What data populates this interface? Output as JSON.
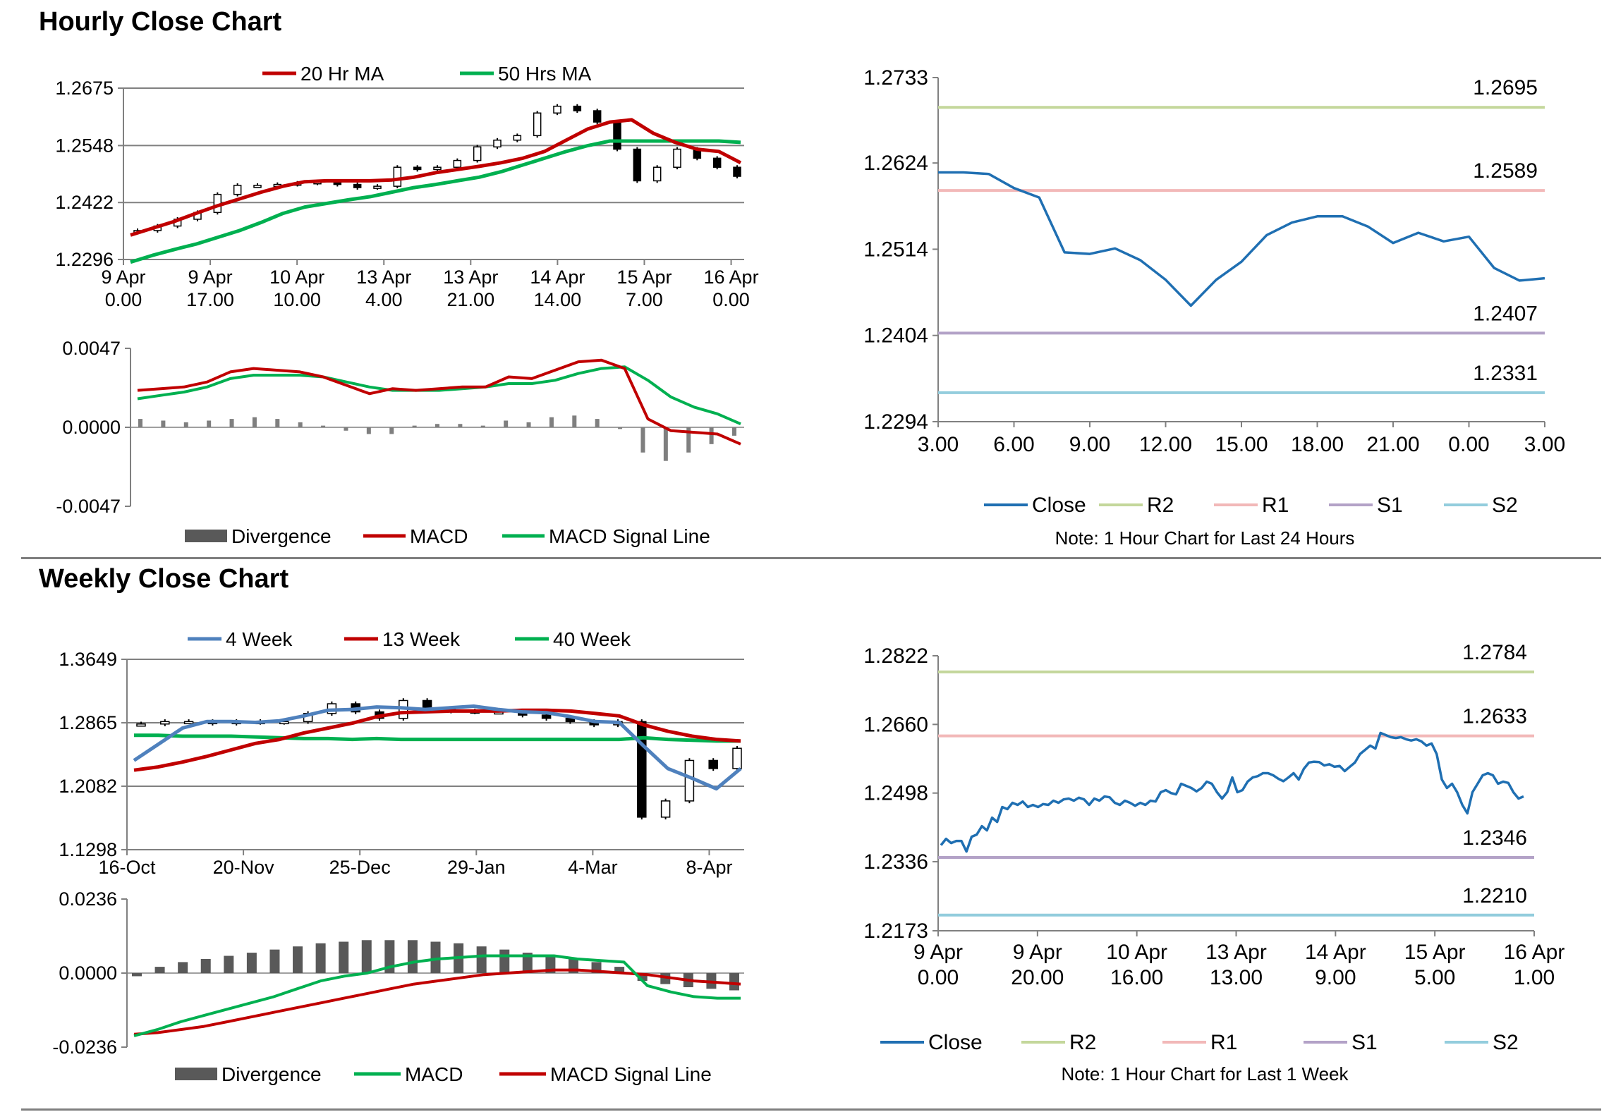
{
  "sections": {
    "hourly_title": "Hourly Close Chart",
    "weekly_title": "Weekly Close Chart"
  },
  "colors": {
    "red": "#c00000",
    "green": "#00b050",
    "blue_ma": "#4f81bd",
    "close": "#1f6fb2",
    "R2": "#c4d79b",
    "R1": "#f2b8b8",
    "S1": "#b3a2c7",
    "S2": "#93cddd",
    "bar": "#595959",
    "grid": "#808080"
  },
  "chart_data": [
    {
      "id": "hourly_price",
      "type": "candlestick",
      "legend": [
        "20 Hr MA",
        "50 Hrs MA"
      ],
      "y_ticks": [
        "1.2675",
        "1.2548",
        "1.2422",
        "1.2296"
      ],
      "ylim": [
        1.2296,
        1.2675
      ],
      "x_ticks": [
        [
          "9 Apr",
          "0.00"
        ],
        [
          "9 Apr",
          "17.00"
        ],
        [
          "10 Apr",
          "10.00"
        ],
        [
          "13 Apr",
          "4.00"
        ],
        [
          "13 Apr",
          "21.00"
        ],
        [
          "14 Apr",
          "14.00"
        ],
        [
          "15 Apr",
          "7.00"
        ],
        [
          "16 Apr",
          "0.00"
        ]
      ],
      "series": [
        {
          "name": "20 Hr MA",
          "values": [
            1.235,
            1.2365,
            1.238,
            1.2398,
            1.2415,
            1.243,
            1.2445,
            1.2458,
            1.2468,
            1.247,
            1.247,
            1.247,
            1.2472,
            1.2478,
            1.2488,
            1.2495,
            1.2502,
            1.251,
            1.252,
            1.2535,
            1.256,
            1.2585,
            1.26,
            1.2605,
            1.2575,
            1.2555,
            1.254,
            1.2535,
            1.251
          ]
        },
        {
          "name": "50 Hrs MA",
          "values": [
            1.229,
            1.2305,
            1.2318,
            1.233,
            1.2345,
            1.236,
            1.2378,
            1.2398,
            1.2412,
            1.242,
            1.2428,
            1.2435,
            1.2445,
            1.2455,
            1.2462,
            1.247,
            1.2478,
            1.249,
            1.2505,
            1.252,
            1.2535,
            1.2548,
            1.2558,
            1.2558,
            1.2558,
            1.2558,
            1.2558,
            1.2558,
            1.2555
          ]
        },
        {
          "name": "Close",
          "values": [
            1.236,
            1.237,
            1.2385,
            1.24,
            1.244,
            1.246,
            1.246,
            1.2462,
            1.2465,
            1.2468,
            1.2462,
            1.2455,
            1.2458,
            1.25,
            1.2495,
            1.25,
            1.2515,
            1.2545,
            1.256,
            1.257,
            1.262,
            1.2635,
            1.2625,
            1.26,
            1.254,
            1.247,
            1.25,
            1.254,
            1.252,
            1.25,
            1.248
          ]
        }
      ]
    },
    {
      "id": "hourly_macd",
      "type": "line+bar",
      "legend": [
        "Divergence",
        "MACD",
        "MACD Signal Line"
      ],
      "y_ticks": [
        "0.0047",
        "0.0000",
        "-0.0047"
      ],
      "ylim": [
        -0.0047,
        0.0047
      ],
      "series": [
        {
          "name": "MACD",
          "values": [
            0.0022,
            0.0023,
            0.0024,
            0.0027,
            0.0033,
            0.0035,
            0.0034,
            0.0033,
            0.003,
            0.0025,
            0.002,
            0.0023,
            0.0022,
            0.0023,
            0.0024,
            0.0024,
            0.003,
            0.0029,
            0.0034,
            0.0039,
            0.004,
            0.0035,
            0.0005,
            -0.0002,
            -0.0003,
            -0.0004,
            -0.001
          ]
        },
        {
          "name": "MACD Signal Line",
          "values": [
            0.0017,
            0.0019,
            0.0021,
            0.0024,
            0.0029,
            0.0031,
            0.0031,
            0.0031,
            0.003,
            0.0027,
            0.0024,
            0.0022,
            0.0022,
            0.0022,
            0.0023,
            0.0024,
            0.0026,
            0.0026,
            0.0028,
            0.0032,
            0.0035,
            0.0036,
            0.0028,
            0.0018,
            0.0012,
            0.0008,
            0.0002
          ]
        },
        {
          "name": "Divergence",
          "values": [
            0.0005,
            0.0004,
            0.0003,
            0.0004,
            0.0005,
            0.0006,
            0.0005,
            0.0003,
            0.0001,
            -0.0002,
            -0.0004,
            -0.0004,
            0.0001,
            0.0002,
            0.0002,
            0.0001,
            0.0004,
            0.0003,
            0.0006,
            0.0007,
            0.0005,
            -0.0001,
            -0.0015,
            -0.002,
            -0.0015,
            -0.001,
            -0.0005
          ]
        }
      ]
    },
    {
      "id": "hourly_close_24h",
      "type": "line",
      "y_ticks": [
        "1.2733",
        "1.2624",
        "1.2514",
        "1.2404",
        "1.2294"
      ],
      "ylim": [
        1.2294,
        1.2733
      ],
      "x_ticks": [
        "3.00",
        "6.00",
        "9.00",
        "12.00",
        "15.00",
        "18.00",
        "21.00",
        "0.00",
        "3.00"
      ],
      "x": [
        3,
        4,
        5,
        6,
        7,
        8,
        9,
        10,
        11,
        12,
        13,
        14,
        15,
        16,
        17,
        18,
        19,
        20,
        21,
        22,
        23,
        24,
        25,
        26,
        27
      ],
      "xlim": [
        3,
        27
      ],
      "values": [
        1.2612,
        1.2612,
        1.261,
        1.2592,
        1.258,
        1.251,
        1.2508,
        1.2515,
        1.25,
        1.2475,
        1.2442,
        1.2475,
        1.2498,
        1.2532,
        1.2548,
        1.2556,
        1.2556,
        1.2543,
        1.2522,
        1.2535,
        1.2524,
        1.253,
        1.249,
        1.2474,
        1.2477
      ],
      "levels": [
        {
          "name": "R2",
          "value": 1.2695,
          "label": "1.2695"
        },
        {
          "name": "R1",
          "value": 1.2589,
          "label": "1.2589"
        },
        {
          "name": "S1",
          "value": 1.2407,
          "label": "1.2407"
        },
        {
          "name": "S2",
          "value": 1.2331,
          "label": "1.2331"
        }
      ],
      "legend": [
        "Close",
        "R2",
        "R1",
        "S1",
        "S2"
      ],
      "note": "Note: 1 Hour Chart for Last 24 Hours"
    },
    {
      "id": "weekly_price",
      "type": "candlestick",
      "legend": [
        "4 Week",
        "13 Week",
        "40 Week"
      ],
      "y_ticks": [
        "1.3649",
        "1.2865",
        "1.2082",
        "1.1298"
      ],
      "ylim": [
        1.1298,
        1.3649
      ],
      "x_ticks": [
        "16-Oct",
        "20-Nov",
        "25-Dec",
        "29-Jan",
        "4-Mar",
        "8-Apr"
      ],
      "series": [
        {
          "name": "4 Week",
          "values": [
            1.24,
            1.26,
            1.28,
            1.288,
            1.288,
            1.287,
            1.289,
            1.295,
            1.302,
            1.303,
            1.306,
            1.305,
            1.303,
            1.305,
            1.307,
            1.303,
            1.3,
            1.299,
            1.294,
            1.288,
            1.287,
            1.258,
            1.23,
            1.218,
            1.205,
            1.23
          ]
        },
        {
          "name": "13 Week",
          "values": [
            1.228,
            1.232,
            1.238,
            1.245,
            1.253,
            1.261,
            1.266,
            1.274,
            1.28,
            1.286,
            1.294,
            1.299,
            1.3,
            1.301,
            1.301,
            1.301,
            1.302,
            1.302,
            1.301,
            1.298,
            1.295,
            1.284,
            1.276,
            1.27,
            1.266,
            1.264
          ]
        },
        {
          "name": "40 Week",
          "values": [
            1.271,
            1.271,
            1.27,
            1.27,
            1.27,
            1.269,
            1.268,
            1.267,
            1.267,
            1.266,
            1.267,
            1.266,
            1.266,
            1.266,
            1.266,
            1.266,
            1.266,
            1.266,
            1.266,
            1.266,
            1.266,
            1.268,
            1.266,
            1.265,
            1.264,
            1.264
          ]
        },
        {
          "name": "Close",
          "values": [
            1.285,
            1.288,
            1.288,
            1.286,
            1.288,
            1.287,
            1.288,
            1.298,
            1.31,
            1.3,
            1.292,
            1.314,
            1.304,
            1.301,
            1.3,
            1.3,
            1.296,
            1.292,
            1.288,
            1.284,
            1.288,
            1.17,
            1.19,
            1.24,
            1.23,
            1.255
          ]
        }
      ]
    },
    {
      "id": "weekly_macd",
      "type": "line+bar",
      "legend": [
        "Divergence",
        "MACD",
        "MACD Signal Line"
      ],
      "y_ticks": [
        "0.0236",
        "0.0000",
        "-0.0236"
      ],
      "ylim": [
        -0.0236,
        0.0236
      ],
      "series": [
        {
          "name": "MACD",
          "values": [
            -0.02,
            -0.018,
            -0.0155,
            -0.0135,
            -0.0115,
            -0.0095,
            -0.0075,
            -0.005,
            -0.0025,
            -0.001,
            0.0,
            0.002,
            0.0035,
            0.0045,
            0.005,
            0.0055,
            0.0055,
            0.0055,
            0.0055,
            0.0045,
            0.004,
            0.0035,
            -0.004,
            -0.006,
            -0.0075,
            -0.008,
            -0.008
          ]
        },
        {
          "name": "MACD Signal Line",
          "values": [
            -0.0195,
            -0.019,
            -0.018,
            -0.017,
            -0.0155,
            -0.014,
            -0.0125,
            -0.011,
            -0.0095,
            -0.008,
            -0.0065,
            -0.005,
            -0.0035,
            -0.0025,
            -0.0015,
            -0.0005,
            0.0,
            0.0005,
            0.001,
            0.001,
            0.0005,
            0.0,
            -0.0005,
            -0.0015,
            -0.0025,
            -0.003,
            -0.0035
          ]
        },
        {
          "name": "Divergence",
          "values": [
            -0.001,
            0.002,
            0.0035,
            0.0045,
            0.0055,
            0.0065,
            0.0075,
            0.0085,
            0.0095,
            0.01,
            0.0105,
            0.0105,
            0.0105,
            0.01,
            0.0095,
            0.0085,
            0.0075,
            0.0065,
            0.0055,
            0.0045,
            0.0035,
            0.002,
            -0.0025,
            -0.0035,
            -0.0045,
            -0.005,
            -0.0055
          ]
        }
      ]
    },
    {
      "id": "weekly_close_1w",
      "type": "line",
      "y_ticks": [
        "1.2822",
        "1.2660",
        "1.2498",
        "1.2336",
        "1.2173"
      ],
      "ylim": [
        1.2173,
        1.2822
      ],
      "x_ticks": [
        [
          "9 Apr",
          "0.00"
        ],
        [
          "9 Apr",
          "20.00"
        ],
        [
          "10 Apr",
          "16.00"
        ],
        [
          "13 Apr",
          "13.00"
        ],
        [
          "14 Apr",
          "9.00"
        ],
        [
          "15 Apr",
          "5.00"
        ],
        [
          "16 Apr",
          "1.00"
        ]
      ],
      "values": [
        1.2375,
        1.239,
        1.238,
        1.2385,
        1.2385,
        1.236,
        1.2395,
        1.24,
        1.242,
        1.241,
        1.244,
        1.243,
        1.2465,
        1.246,
        1.2475,
        1.247,
        1.2478,
        1.2465,
        1.247,
        1.2465,
        1.2472,
        1.247,
        1.248,
        1.2475,
        1.2483,
        1.2485,
        1.248,
        1.2487,
        1.2483,
        1.247,
        1.2485,
        1.248,
        1.249,
        1.2488,
        1.2475,
        1.247,
        1.248,
        1.2475,
        1.2468,
        1.2475,
        1.247,
        1.248,
        1.2478,
        1.25,
        1.2505,
        1.2498,
        1.2495,
        1.252,
        1.2515,
        1.251,
        1.2502,
        1.251,
        1.2525,
        1.252,
        1.25,
        1.2485,
        1.25,
        1.2535,
        1.25,
        1.2505,
        1.2525,
        1.2535,
        1.2538,
        1.2545,
        1.2545,
        1.254,
        1.2532,
        1.2526,
        1.2535,
        1.2545,
        1.253,
        1.2555,
        1.257,
        1.2572,
        1.2571,
        1.2563,
        1.2566,
        1.256,
        1.2562,
        1.255,
        1.256,
        1.257,
        1.259,
        1.26,
        1.261,
        1.2603,
        1.264,
        1.2635,
        1.263,
        1.2628,
        1.263,
        1.2625,
        1.2622,
        1.2625,
        1.262,
        1.261,
        1.2615,
        1.259,
        1.253,
        1.251,
        1.252,
        1.25,
        1.247,
        1.245,
        1.25,
        1.252,
        1.254,
        1.2545,
        1.254,
        1.252,
        1.2525,
        1.2522,
        1.25,
        1.2485,
        1.249
      ],
      "levels": [
        {
          "name": "R2",
          "value": 1.2784,
          "label": "1.2784"
        },
        {
          "name": "R1",
          "value": 1.2633,
          "label": "1.2633"
        },
        {
          "name": "S1",
          "value": 1.2346,
          "label": "1.2346"
        },
        {
          "name": "S2",
          "value": 1.221,
          "label": "1.2210"
        }
      ],
      "legend": [
        "Close",
        "R2",
        "R1",
        "S1",
        "S2"
      ],
      "note": "Note: 1 Hour Chart for Last 1 Week"
    }
  ]
}
